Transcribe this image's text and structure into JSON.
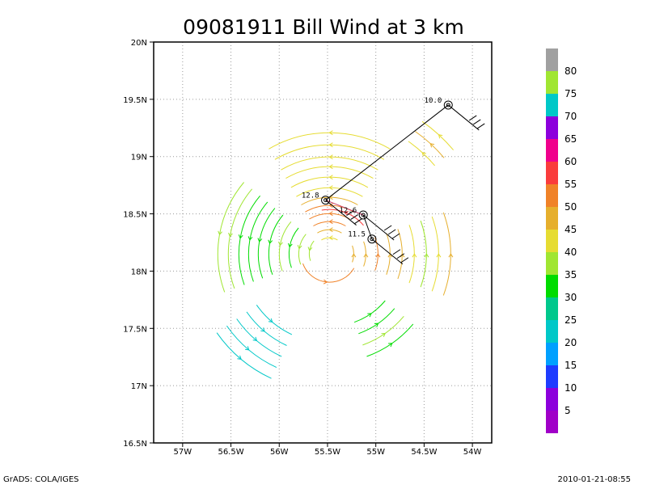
{
  "title": "09081911 Bill Wind at 3 km",
  "footer_left": "GrADS: COLA/IGES",
  "footer_right": "2010-01-21-08:55",
  "x_ticks": [
    "57W",
    "56.5W",
    "56W",
    "55.5W",
    "55W",
    "54.5W",
    "54W"
  ],
  "y_ticks": [
    "20N",
    "19.5N",
    "19N",
    "18.5N",
    "18N",
    "17.5N",
    "17N",
    "16.5N"
  ],
  "colorbar": {
    "labels": [
      "80",
      "75",
      "70",
      "65",
      "60",
      "55",
      "50",
      "45",
      "40",
      "35",
      "30",
      "25",
      "20",
      "15",
      "10",
      "5"
    ],
    "colors": [
      "#a0a0a0",
      "#a0e632",
      "#00c8c8",
      "#8c00dc",
      "#f0008c",
      "#fa3c3c",
      "#f08228",
      "#e6af2d",
      "#e6dc32",
      "#a0e632",
      "#00dc00",
      "#00c88c",
      "#00c8c8",
      "#00a0ff",
      "#1e3cff",
      "#8c00dc",
      "#a000c8"
    ]
  },
  "chart_data": {
    "type": "map",
    "lon_range": [
      -57.3,
      -53.8
    ],
    "lat_range": [
      16.5,
      20.0
    ],
    "storm_track": [
      {
        "lon": -54.25,
        "lat": 19.45,
        "label": "10.0"
      },
      {
        "lon": -55.52,
        "lat": 18.62,
        "label": "12.8"
      },
      {
        "lon": -55.13,
        "lat": 18.49,
        "label": "12.6"
      },
      {
        "lon": -55.04,
        "lat": 18.28,
        "label": "11.5"
      }
    ]
  }
}
